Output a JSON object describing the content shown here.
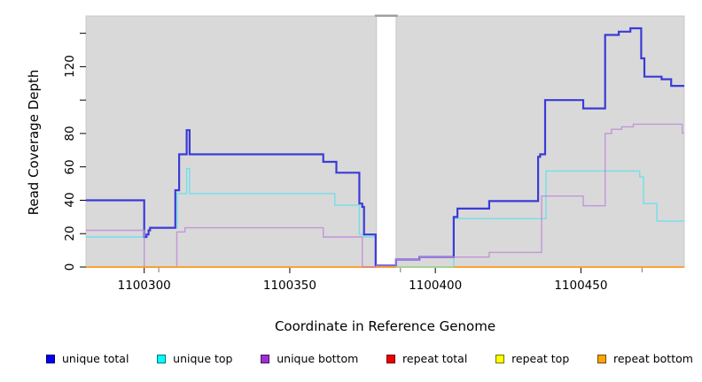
{
  "chart_data": {
    "type": "line",
    "step": true,
    "title": "",
    "xlabel": "Coordinate in Reference Genome",
    "ylabel": "Read Coverage Depth",
    "xlim": [
      1100280,
      1100485.5
    ],
    "ylim": [
      0,
      150.4
    ],
    "grid": false,
    "plot_background_color": "#d9d9d9",
    "x_ticks": [
      {
        "value": 1100300,
        "label": "1100300"
      },
      {
        "value": 1100350,
        "label": "1100350"
      },
      {
        "value": 1100400,
        "label": "1100400"
      },
      {
        "value": 1100450,
        "label": "1100450"
      }
    ],
    "x_minor_ticks": [
      1100305,
      1100388,
      1100471
    ],
    "y_ticks": [
      {
        "value": 0,
        "label": "0"
      },
      {
        "value": 20,
        "label": "20"
      },
      {
        "value": 40,
        "label": "40"
      },
      {
        "value": 60,
        "label": "60"
      },
      {
        "value": 80,
        "label": "80"
      },
      {
        "value": 100,
        "label": ""
      },
      {
        "value": 120,
        "label": "120"
      },
      {
        "value": 140,
        "label": ""
      }
    ],
    "background_regions": [
      {
        "from": 1100280,
        "to": 1100379.8
      },
      {
        "from": 1100386.5,
        "to": 1100485.5
      }
    ],
    "gap": {
      "from": 1100379.8,
      "to": 1100386.5
    },
    "series": [
      {
        "name": "unique total",
        "color": "#3b3bd8",
        "line_width": 2.2,
        "points": [
          [
            1100280,
            40
          ],
          [
            1100300,
            18
          ],
          [
            1100300.8,
            19.5
          ],
          [
            1100301.5,
            22
          ],
          [
            1100302,
            23.5
          ],
          [
            1100310.7,
            46
          ],
          [
            1100312,
            67.5
          ],
          [
            1100314.6,
            82
          ],
          [
            1100315.6,
            67.5
          ],
          [
            1100361.5,
            63
          ],
          [
            1100366,
            56.5
          ],
          [
            1100373.9,
            38
          ],
          [
            1100374.9,
            36
          ],
          [
            1100375.5,
            19.5
          ],
          [
            1100379.5,
            1
          ],
          [
            1100386.5,
            4.5
          ],
          [
            1100394.5,
            6
          ],
          [
            1100406.3,
            30
          ],
          [
            1100407.6,
            35
          ],
          [
            1100418.5,
            39.5
          ],
          [
            1100435.3,
            66
          ],
          [
            1100436,
            67.5
          ],
          [
            1100437.7,
            100
          ],
          [
            1100450.8,
            95
          ],
          [
            1100458.3,
            139
          ],
          [
            1100463,
            141
          ],
          [
            1100467,
            143
          ],
          [
            1100470.7,
            125
          ],
          [
            1100471.8,
            114
          ],
          [
            1100477.7,
            112.5
          ],
          [
            1100481,
            108.5
          ]
        ]
      },
      {
        "name": "unique top",
        "color": "#72dfea",
        "line_width": 1.4,
        "points": [
          [
            1100280,
            18
          ],
          [
            1100300.8,
            19.5
          ],
          [
            1100301.5,
            22
          ],
          [
            1100302,
            23.5
          ],
          [
            1100311.4,
            44
          ],
          [
            1100314.6,
            59
          ],
          [
            1100315.6,
            44
          ],
          [
            1100365.5,
            37
          ],
          [
            1100373.9,
            19.5
          ],
          [
            1100375.5,
            18
          ],
          [
            1100379.5,
            0
          ],
          [
            1100406.3,
            29
          ],
          [
            1100438,
            57.5
          ],
          [
            1100470.2,
            54
          ],
          [
            1100471.5,
            38
          ],
          [
            1100476.1,
            27.5
          ]
        ]
      },
      {
        "name": "unique bottom",
        "color": "#bd8ad8",
        "line_width": 1.4,
        "points": [
          [
            1100280,
            22
          ],
          [
            1100300,
            0
          ],
          [
            1100311.2,
            21
          ],
          [
            1100314,
            23.5
          ],
          [
            1100361.5,
            18
          ],
          [
            1100374.9,
            0
          ],
          [
            1100379.8,
            1
          ],
          [
            1100386.5,
            4.5
          ],
          [
            1100394.5,
            6
          ],
          [
            1100418.5,
            8.8
          ],
          [
            1100436.5,
            42.5
          ],
          [
            1100450.8,
            36.7
          ],
          [
            1100458.3,
            80
          ],
          [
            1100460.5,
            82.5
          ],
          [
            1100464,
            84
          ],
          [
            1100468,
            85.6
          ],
          [
            1100484.8,
            80.3
          ]
        ]
      },
      {
        "name": "repeat total",
        "color": "#dd2222",
        "line_width": 1.4,
        "points": [
          [
            1100280,
            0
          ]
        ]
      },
      {
        "name": "repeat top",
        "color": "#f5e500",
        "line_width": 1.4,
        "points": [
          [
            1100280,
            0
          ]
        ]
      },
      {
        "name": "repeat bottom",
        "color": "#ff9e2c",
        "line_width": 1.7,
        "points": [
          [
            1100280,
            0
          ]
        ]
      }
    ],
    "baseline_overlays": [
      {
        "from": 1100374.9,
        "to": 1100379.8,
        "color": "#e08585",
        "name": "pink-blend-segment"
      },
      {
        "from": 1100386.5,
        "to": 1100406.3,
        "color": "#9bd8a0",
        "name": "green-blend-segment"
      }
    ],
    "legend": [
      {
        "label": "unique total",
        "color": "#0000ee"
      },
      {
        "label": "unique top",
        "color": "#00ffff"
      },
      {
        "label": "unique bottom",
        "color": "#9f2fd4"
      },
      {
        "label": "repeat total",
        "color": "#ee0000"
      },
      {
        "label": "repeat top",
        "color": "#ffff00"
      },
      {
        "label": "repeat bottom",
        "color": "#ffa500"
      }
    ]
  }
}
